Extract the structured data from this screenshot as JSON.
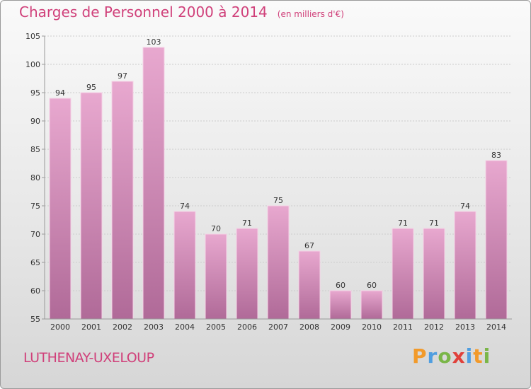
{
  "header": {
    "title": "Charges de Personnel 2000 à 2014",
    "subtitle": "(en milliers d'€)"
  },
  "footer": {
    "commune": "LUTHENAY-UXELOUP",
    "brand": [
      "P",
      "r",
      "o",
      "x",
      "i",
      "t",
      "i"
    ],
    "brand_colors": [
      "#f29a2a",
      "#4f9ee0",
      "#7ab648",
      "#e0403a",
      "#4f9ee0",
      "#f29a2a",
      "#7ab648"
    ]
  },
  "colors": {
    "bar_top": "#e8a8cf",
    "bar_bottom": "#b06a98",
    "title": "#d0407a",
    "grid": "#cccccc"
  },
  "chart_data": {
    "type": "bar",
    "title": "Charges de Personnel 2000 à 2014",
    "subtitle": "(en milliers d'€)",
    "categories": [
      "2000",
      "2001",
      "2002",
      "2003",
      "2004",
      "2005",
      "2006",
      "2007",
      "2008",
      "2009",
      "2010",
      "2011",
      "2012",
      "2013",
      "2014"
    ],
    "values": [
      94,
      95,
      97,
      103,
      74,
      70,
      71,
      75,
      67,
      60,
      60,
      71,
      71,
      74,
      83
    ],
    "ylim": [
      55,
      105
    ],
    "yticks": [
      55,
      60,
      65,
      70,
      75,
      80,
      85,
      90,
      95,
      100,
      105
    ],
    "grid": true
  }
}
